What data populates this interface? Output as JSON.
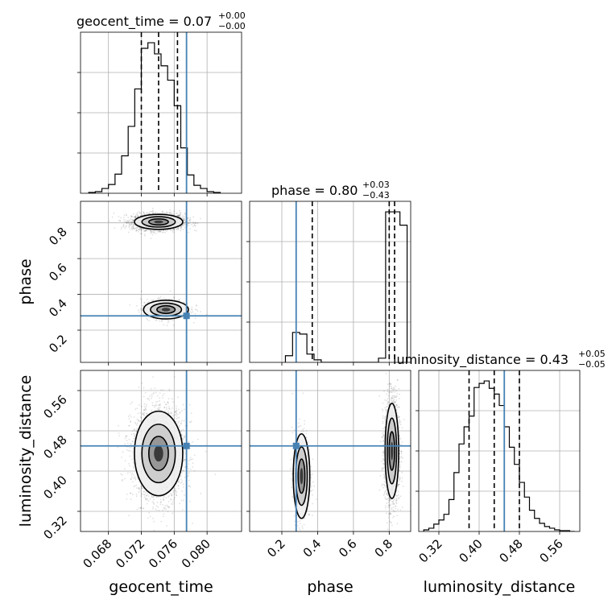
{
  "chart_data": {
    "type": "corner",
    "parameters": [
      "geocent_time",
      "phase",
      "luminosity_distance"
    ],
    "truths": {
      "geocent_time": 0.0775,
      "phase": 0.28,
      "luminosity_distance": 0.45
    },
    "truth_color": "#4682b4",
    "titles": [
      {
        "main": "geocent_time = 0.07",
        "plus": "+0.00",
        "minus": "−0.00"
      },
      {
        "main": "phase = 0.80",
        "plus": "+0.03",
        "minus": "−0.43"
      },
      {
        "main": "luminosity_distance = 0.43",
        "plus": "+0.05",
        "minus": "−0.05"
      }
    ],
    "axis_labels": {
      "geocent_time": "geocent_time",
      "phase": "phase",
      "luminosity_distance": "luminosity_distance"
    },
    "ranges": {
      "geocent_time": [
        0.0646,
        0.0842
      ],
      "phase": [
        0.02,
        0.92
      ],
      "luminosity_distance": [
        0.28,
        0.6
      ]
    },
    "ticks": {
      "geocent_time": {
        "values": [
          0.068,
          0.072,
          0.076,
          0.08
        ],
        "labels": [
          "0.068",
          "0.072",
          "0.076",
          "0.080"
        ]
      },
      "phase": {
        "values": [
          0.2,
          0.4,
          0.6,
          0.8
        ],
        "labels": [
          "0.2",
          "0.4",
          "0.6",
          "0.8"
        ]
      },
      "luminosity_distance": {
        "values": [
          0.32,
          0.4,
          0.48,
          0.56
        ],
        "labels": [
          "0.32",
          "0.40",
          "0.48",
          "0.56"
        ]
      }
    },
    "histograms": {
      "geocent_time": {
        "bins": [
          0.0656,
          0.0664,
          0.0672,
          0.068,
          0.0688,
          0.0696,
          0.0704,
          0.0712,
          0.072,
          0.0728,
          0.0736,
          0.0744,
          0.0752,
          0.076,
          0.0768,
          0.0776,
          0.0784,
          0.0792,
          0.08,
          0.0808,
          0.0816
        ],
        "counts": [
          1,
          2,
          6,
          11,
          24,
          47,
          84,
          131,
          182,
          189,
          175,
          160,
          142,
          110,
          57,
          23,
          10,
          6,
          2,
          1
        ],
        "quantiles": [
          0.072,
          0.0741,
          0.0764
        ]
      },
      "phase": {
        "bins": [
          0.22,
          0.26,
          0.3,
          0.34,
          0.38,
          0.42,
          0.46,
          0.5,
          0.54,
          0.58,
          0.62,
          0.66,
          0.7,
          0.74,
          0.78,
          0.82,
          0.86,
          0.9
        ],
        "counts": [
          8,
          36,
          34,
          10,
          3,
          0,
          0,
          0,
          0,
          0,
          0,
          0,
          0,
          5,
          181,
          181,
          165
        ],
        "quantiles": [
          0.37,
          0.8,
          0.83
        ]
      },
      "luminosity_distance": {
        "bins": [
          0.29,
          0.3,
          0.31,
          0.32,
          0.33,
          0.34,
          0.35,
          0.36,
          0.37,
          0.38,
          0.39,
          0.4,
          0.41,
          0.42,
          0.43,
          0.44,
          0.45,
          0.46,
          0.47,
          0.48,
          0.49,
          0.5,
          0.51,
          0.52,
          0.53,
          0.54,
          0.55,
          0.56,
          0.57,
          0.58,
          0.59
        ],
        "counts": [
          2,
          4,
          9,
          14,
          21,
          39,
          72,
          107,
          128,
          141,
          176,
          181,
          184,
          175,
          168,
          154,
          128,
          103,
          82,
          60,
          42,
          26,
          16,
          10,
          6,
          4,
          2,
          1,
          1,
          0
        ],
        "quantiles": [
          0.38,
          0.43,
          0.48
        ]
      }
    },
    "joint_modes": {
      "geocent_time_vs_phase": [
        {
          "x": 0.0741,
          "y": 0.805,
          "sx": 0.0014,
          "sy": 0.02,
          "weight": 0.8
        },
        {
          "x": 0.075,
          "y": 0.315,
          "sx": 0.0013,
          "sy": 0.025,
          "weight": 0.2
        }
      ],
      "geocent_time_vs_luminosity_distance": [
        {
          "x": 0.0741,
          "y": 0.435,
          "sx": 0.0014,
          "sy": 0.04,
          "weight": 1.0
        }
      ],
      "phase_vs_luminosity_distance": [
        {
          "x": 0.815,
          "y": 0.44,
          "sx": 0.018,
          "sy": 0.045,
          "weight": 0.8
        },
        {
          "x": 0.31,
          "y": 0.39,
          "sx": 0.022,
          "sy": 0.04,
          "weight": 0.2
        }
      ]
    },
    "grid": true
  }
}
